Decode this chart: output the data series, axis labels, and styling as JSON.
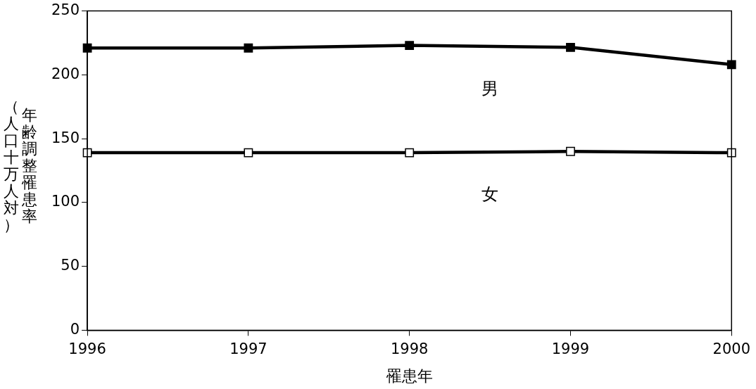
{
  "chart_data": {
    "type": "line",
    "xlabel": "罹患年",
    "ylabel": "年齢調整罹患率（人口十万人対）",
    "categories": [
      "1996",
      "1997",
      "1998",
      "1999",
      "2000"
    ],
    "series": [
      {
        "name": "男",
        "color": "#000000",
        "colors": [
          "#000000",
          "#000000",
          "#000000",
          "#000000",
          "#000000"
        ],
        "values": [
          221,
          221,
          223,
          221.5,
          208
        ]
      },
      {
        "name": "女",
        "color": "#000000",
        "colors": [
          "#ffffff",
          "#ffffff",
          "#ffffff",
          "#ffffff",
          "#ffffff"
        ],
        "values": [
          139,
          139,
          139,
          140,
          139
        ]
      }
    ],
    "ylim": [
      0,
      250
    ],
    "yticks": [
      0,
      50,
      100,
      150,
      200,
      250
    ],
    "grid": false,
    "legend": false,
    "marker": "square",
    "line_style": "solid"
  }
}
